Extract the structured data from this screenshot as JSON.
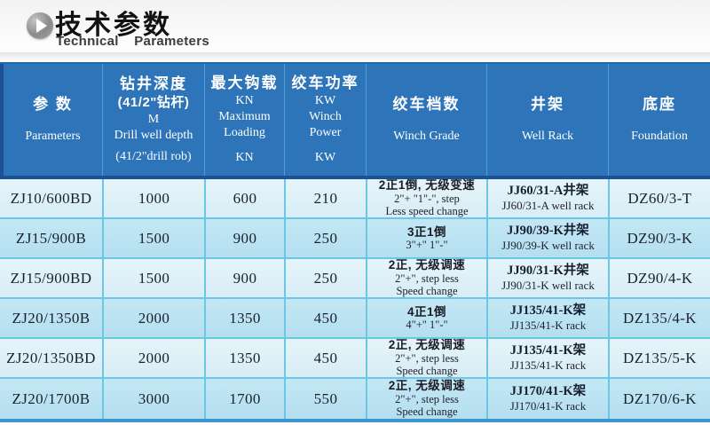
{
  "title": {
    "zh": "技术参数",
    "en": "Technical Parameters"
  },
  "icon": {
    "play_icon": "play-icon"
  },
  "colors": {
    "header_blue": "#2e74b8",
    "header_separator": "#4f9ed6",
    "header_bottom_line": "#1c5193",
    "cell_border_cyan": "#6cc6e6",
    "row_light": "#d8edf6",
    "row_dark": "#b4dff0",
    "table_bottom_border": "#3e96ce"
  },
  "table": {
    "header": [
      {
        "lines": [
          "参 数",
          "Parameters"
        ]
      },
      {
        "lines": [
          "钻井深度",
          "(41/2\"钻杆)",
          "M",
          "Drill well depth",
          "(41/2\"drill rob)"
        ]
      },
      {
        "lines": [
          "最大钩载",
          "KN",
          "Maximum",
          "Loading",
          "KN"
        ]
      },
      {
        "lines": [
          "绞车功率",
          "KW",
          "Winch",
          "Power",
          "KW"
        ]
      },
      {
        "lines": [
          "绞车档数",
          "Winch Grade"
        ]
      },
      {
        "lines": [
          "井架",
          "Well Rack"
        ]
      },
      {
        "lines": [
          "底座",
          "Foundation"
        ]
      }
    ],
    "rows": [
      {
        "model": "ZJ10/600BD",
        "depth": "1000",
        "load": "600",
        "power": "210",
        "winch": [
          "2正1倒, 无级变速",
          "2\"+ \"1\"-\", step",
          "Less speed change"
        ],
        "rack": [
          "JJ60/31-A井架",
          "JJ60/31-A well rack"
        ],
        "foundation": "DZ60/3-T"
      },
      {
        "model": "ZJ15/900B",
        "depth": "1500",
        "load": "900",
        "power": "250",
        "winch": [
          "3正1倒",
          "3\"+\"  1\"-\""
        ],
        "rack": [
          "JJ90/39-K井架",
          "JJ90/39-K well rack"
        ],
        "foundation": "DZ90/3-K"
      },
      {
        "model": "ZJ15/900BD",
        "depth": "1500",
        "load": "900",
        "power": "250",
        "winch": [
          "2正, 无级调速",
          "2\"+\", step less",
          "Speed change"
        ],
        "rack": [
          "JJ90/31-K井架",
          "JJ90/31-K well rack"
        ],
        "foundation": "DZ90/4-K"
      },
      {
        "model": "ZJ20/1350B",
        "depth": "2000",
        "load": "1350",
        "power": "450",
        "winch": [
          "4正1倒",
          "4\"+\"  1\"-\""
        ],
        "rack": [
          "JJ135/41-K架",
          "JJ135/41-K rack"
        ],
        "foundation": "DZ135/4-K"
      },
      {
        "model": "ZJ20/1350BD",
        "depth": "2000",
        "load": "1350",
        "power": "450",
        "winch": [
          "2正, 无级调速",
          "2\"+\", step less",
          "Speed change"
        ],
        "rack": [
          "JJ135/41-K架",
          "JJ135/41-K rack"
        ],
        "foundation": "DZ135/5-K"
      },
      {
        "model": "ZJ20/1700B",
        "depth": "3000",
        "load": "1700",
        "power": "550",
        "winch": [
          "2正, 无级调速",
          "2\"+\", step less",
          "Speed change"
        ],
        "rack": [
          "JJ170/41-K架",
          "JJ170/41-K rack"
        ],
        "foundation": "DZ170/6-K"
      }
    ]
  }
}
